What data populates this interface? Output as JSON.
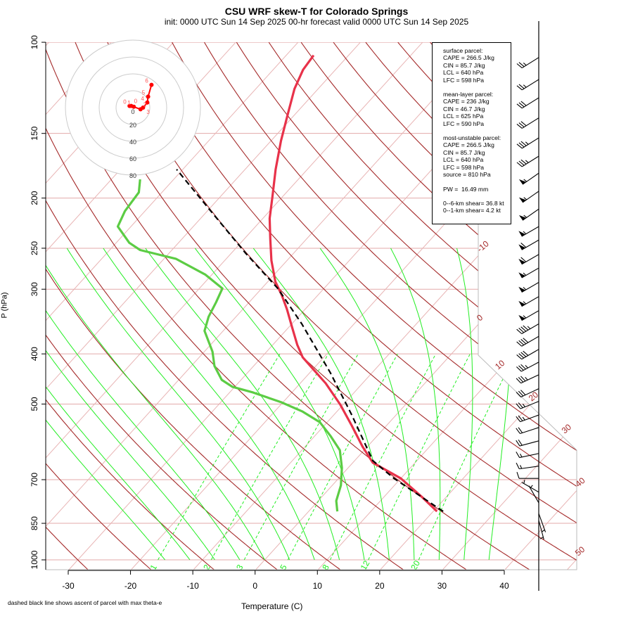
{
  "title": "CSU WRF skew-T for Colorado Springs",
  "subtitle": "init: 0000 UTC Sun 14 Sep 2025     00-hr forecast valid 0000 UTC Sun 14 Sep 2025",
  "footnote": "dashed black line shows ascent of parcel with max theta-e",
  "legend": {
    "surface": [
      "surface parcel:",
      "CAPE = 266.5 J/kg",
      "CIN = 85.7 J/kg",
      "LCL = 640 hPa",
      "LFC = 598 hPa"
    ],
    "mean_layer": [
      "mean-layer parcel:",
      "CAPE = 236 J/kg",
      "CIN = 46.7 J/kg",
      "LCL = 625 hPa",
      "LFC = 590 hPa"
    ],
    "most_unstable": [
      "most-unstable parcel:",
      "CAPE = 266.5 J/kg",
      "CIN = 85.7 J/kg",
      "LCL = 640 hPa",
      "LFC = 598 hPa",
      "source = 810 hPa"
    ],
    "pw": "PW =  16.49 mm",
    "shear": [
      "0--6-km shear= 36.8 kt",
      "0--1-km shear= 4.2 kt"
    ]
  },
  "chart_data": {
    "type": "line",
    "title": "CSU WRF skew-T for Colorado Springs",
    "xlabel": "Temperature (C)",
    "ylabel": "P (hPa)",
    "x_ticks": [
      -30,
      -20,
      -10,
      0,
      10,
      20,
      30,
      40
    ],
    "y_ticks": [
      100,
      150,
      200,
      250,
      300,
      400,
      500,
      700,
      850,
      1000
    ],
    "xlim": [
      -33,
      45
    ],
    "ylim": [
      1050,
      100
    ],
    "isotherm_labels": [
      -10,
      0,
      10,
      20,
      30,
      40,
      50
    ],
    "mixing_ratio_labels": [
      1,
      2,
      3,
      5,
      8,
      12,
      20
    ],
    "colors": {
      "temperature": "#e8324a",
      "dewpoint": "#5ccc44",
      "parcel": "#000000",
      "dry_adiabat": "#a52a2a",
      "isotherm": "#e8b4b4",
      "moist": "#22ee22",
      "barb": "#000000"
    },
    "series": [
      {
        "name": "temperature",
        "p": [
          806,
          755,
          696,
          649,
          604,
          550,
          501,
          456,
          428,
          406,
          384,
          355,
          328,
          308,
          290,
          264,
          240,
          219,
          199,
          176,
          155,
          137,
          123,
          113,
          106
        ],
        "t": [
          20.6,
          16.0,
          10.0,
          3.2,
          -0.8,
          -5.6,
          -10.5,
          -15.9,
          -20.0,
          -23.4,
          -26.1,
          -29.5,
          -32.9,
          -35.8,
          -38.8,
          -42.5,
          -45.8,
          -48.9,
          -51.6,
          -55.1,
          -58.4,
          -61.3,
          -63.8,
          -65.2,
          -65.6
        ]
      },
      {
        "name": "dewpoint",
        "p": [
          806,
          769,
          718,
          664,
          614,
          577,
          542,
          517,
          496,
          475,
          463,
          449,
          422,
          396,
          361,
          339,
          318,
          299,
          281,
          262,
          252,
          244,
          227,
          212,
          195,
          184
        ],
        "t": [
          4.6,
          2.9,
          1.4,
          -1.0,
          -3.9,
          -7.4,
          -11.2,
          -15.5,
          -20.3,
          -26.2,
          -30.4,
          -33.1,
          -36.3,
          -38.7,
          -43.0,
          -44.4,
          -45.3,
          -46.3,
          -51.1,
          -58.1,
          -65.1,
          -67.9,
          -72.1,
          -73.2,
          -73.7,
          -75.4
        ]
      },
      {
        "name": "parcel",
        "p": [
          806,
          696,
          643,
          525,
          435,
          350,
          299,
          256,
          212,
          176
        ],
        "t": [
          21.6,
          8.9,
          2.9,
          -7.1,
          -16.7,
          -28.4,
          -37.4,
          -47.6,
          -59.4,
          -71.0
        ]
      }
    ],
    "wind_barbs": {
      "p": [
        107,
        118,
        128,
        140,
        153,
        166,
        179,
        194,
        210,
        227,
        241,
        257,
        273,
        291,
        310,
        330,
        350,
        370,
        392,
        415,
        439,
        467,
        494,
        525,
        555,
        589,
        623,
        659,
        696,
        740,
        776,
        814,
        839
      ],
      "speed_kt": [
        25,
        25,
        30,
        30,
        35,
        35,
        55,
        55,
        55,
        55,
        60,
        60,
        55,
        55,
        55,
        55,
        45,
        40,
        40,
        35,
        35,
        30,
        25,
        25,
        20,
        20,
        15,
        15,
        10,
        5,
        5,
        5,
        5
      ],
      "dir_deg": [
        238,
        238,
        238,
        238,
        238,
        238,
        235,
        235,
        235,
        240,
        240,
        240,
        240,
        240,
        240,
        240,
        240,
        240,
        240,
        242,
        245,
        245,
        248,
        250,
        252,
        255,
        258,
        262,
        270,
        300,
        330,
        160,
        165
      ]
    },
    "hodograph": {
      "ring_labels": [
        0,
        20,
        40,
        60,
        80
      ],
      "point_labels": [
        "0",
        "0",
        "1",
        "2",
        "3",
        "4",
        "5",
        "6"
      ],
      "u_kt": [
        -4,
        -2,
        1,
        9,
        12,
        17,
        18,
        22
      ],
      "v_kt": [
        2,
        2,
        1,
        -2,
        0,
        6,
        13,
        27
      ]
    }
  }
}
